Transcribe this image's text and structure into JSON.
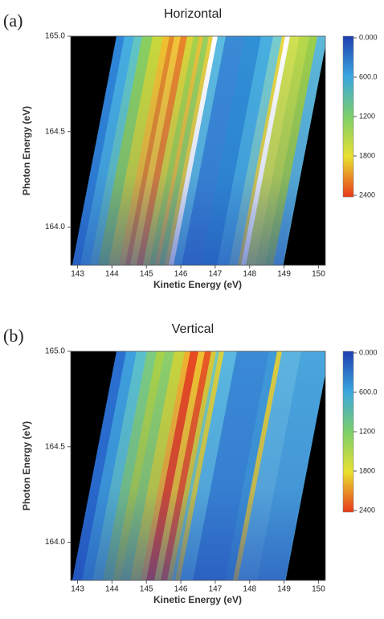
{
  "chart_data": [
    {
      "type": "heatmap",
      "label": "(a)",
      "title": "Horizontal",
      "x_label": "Kinetic Energy (eV)",
      "y_label": "Photon Energy (eV)",
      "xlim": [
        142.8,
        150.2
      ],
      "xticks": [
        143,
        144,
        145,
        146,
        147,
        148,
        149,
        150
      ],
      "ylim": [
        163.8,
        165.0
      ],
      "yticks": [
        {
          "value": 164.0,
          "label": "164.0"
        },
        164.5,
        {
          "value": 165.0,
          "label": "165.0"
        }
      ],
      "colorbar_lim": [
        0,
        2400
      ],
      "colorbar_ticks": [
        {
          "value": 0,
          "label": "0.000"
        },
        {
          "value": 600,
          "label": "600.0"
        },
        1200,
        1800,
        2400
      ],
      "colormap": [
        "#1f3fb0",
        "#3aa6e0",
        "#7ccf6a",
        "#e9e030",
        "#e83a1a"
      ]
    },
    {
      "type": "heatmap",
      "label": "(b)",
      "title": "Vertical",
      "x_label": "Kinetic Energy (eV)",
      "y_label": "Photon Energy (eV)",
      "xlim": [
        142.8,
        150.2
      ],
      "xticks": [
        143,
        144,
        145,
        146,
        147,
        148,
        149,
        150
      ],
      "ylim": [
        163.8,
        165.0
      ],
      "yticks": [
        {
          "value": 164.0,
          "label": "164.0"
        },
        164.5,
        {
          "value": 165.0,
          "label": "165.0"
        }
      ],
      "colorbar_lim": [
        0,
        2400
      ],
      "colorbar_ticks": [
        {
          "value": 0,
          "label": "0.000"
        },
        {
          "value": 600,
          "label": "600.0"
        },
        1200,
        1800,
        2400
      ],
      "colormap": [
        "#1f3fb0",
        "#3aa6e0",
        "#7ccf6a",
        "#e9e030",
        "#e83a1a"
      ]
    }
  ]
}
